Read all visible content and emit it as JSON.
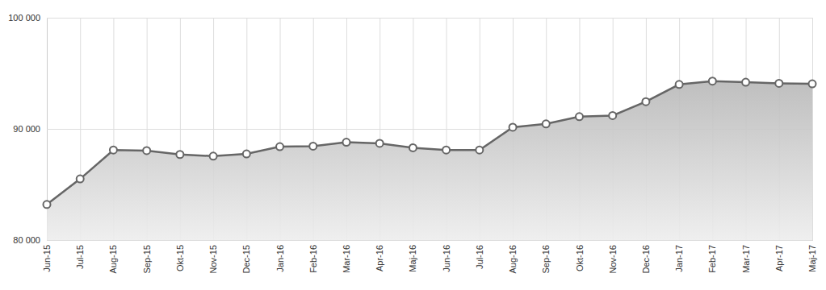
{
  "chart_data": {
    "type": "area",
    "categories": [
      "Jun-15",
      "Jul-15",
      "Aug-15",
      "Sep-15",
      "Okt-15",
      "Nov-15",
      "Dec-15",
      "Jan-16",
      "Feb-16",
      "Mar-16",
      "Apr-16",
      "Maj-16",
      "Jun-16",
      "Jul-16",
      "Aug-16",
      "Sep-16",
      "Okt-16",
      "Nov-16",
      "Dec-16",
      "Jan-17",
      "Feb-17",
      "Mar-17",
      "Apr-17",
      "Maj-17"
    ],
    "values": [
      83200,
      85500,
      88100,
      88050,
      87700,
      87550,
      87750,
      88400,
      88450,
      88800,
      88700,
      88300,
      88100,
      88100,
      90150,
      90450,
      91100,
      91200,
      92450,
      94000,
      94300,
      94200,
      94100,
      94050
    ],
    "color": "#666666",
    "marker": "circle",
    "ylim": [
      80000,
      100000
    ],
    "yticks": [
      {
        "value": 80000,
        "label": "80 000"
      },
      {
        "value": 90000,
        "label": "90 000"
      },
      {
        "value": 100000,
        "label": "100 000"
      }
    ],
    "grid": true
  }
}
